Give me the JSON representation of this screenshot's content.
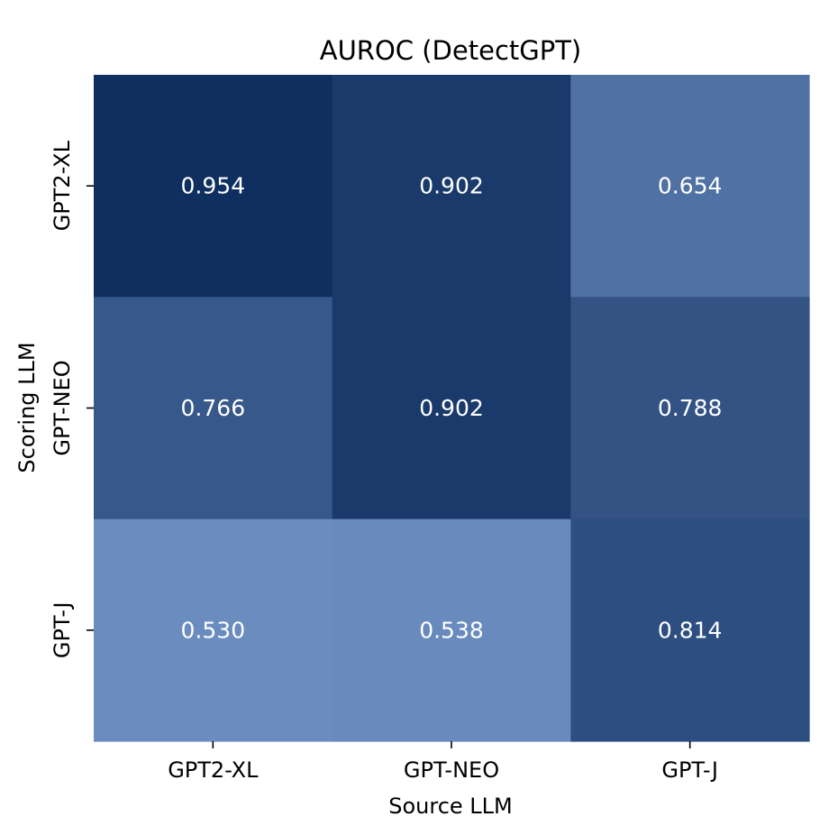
{
  "chart_data": {
    "type": "heatmap",
    "title": "AUROC (DetectGPT)",
    "xlabel": "Source LLM",
    "ylabel": "Scoring LLM",
    "x_categories": [
      "GPT2-XL",
      "GPT-NEO",
      "GPT-J"
    ],
    "y_categories": [
      "GPT2-XL",
      "GPT-NEO",
      "GPT-J"
    ],
    "values": [
      [
        0.954,
        0.902,
        0.654
      ],
      [
        0.766,
        0.902,
        0.788
      ],
      [
        0.53,
        0.538,
        0.814
      ]
    ],
    "value_labels": [
      [
        "0.954",
        "0.902",
        "0.654"
      ],
      [
        "0.766",
        "0.902",
        "0.788"
      ],
      [
        "0.530",
        "0.538",
        "0.814"
      ]
    ],
    "color_low": "#6a8cbe",
    "color_high": "#0f2f61",
    "value_range": [
      0.53,
      0.954
    ],
    "colorbar": false,
    "grid": false
  }
}
